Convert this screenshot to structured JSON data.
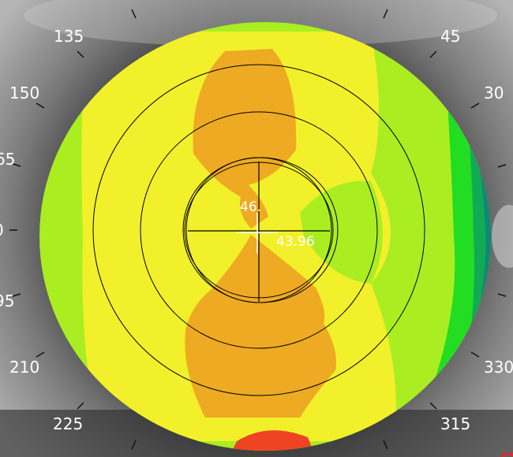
{
  "colors": {
    "background_skin": "#4a4a4a",
    "sclera_bright": "#d8d8d8",
    "map_orange": "#eeaa22",
    "map_yellow": "#f2f02a",
    "map_lime": "#aaee22",
    "map_green": "#22dd22",
    "map_darkgreen": "#11aa55",
    "map_teal": "#118877",
    "map_red": "#ee4422",
    "ring_stroke": "#000000",
    "text": "#ffffff"
  },
  "axis_labels": {
    "a135": "135",
    "a45": "45",
    "a150": "150",
    "a30": "30",
    "a165": "65",
    "a180": "0",
    "a195": "95",
    "a210": "210",
    "a330": "330",
    "a225": "225",
    "a315": "315"
  },
  "readings": {
    "vertical": "46.",
    "horizontal": "43.96"
  }
}
